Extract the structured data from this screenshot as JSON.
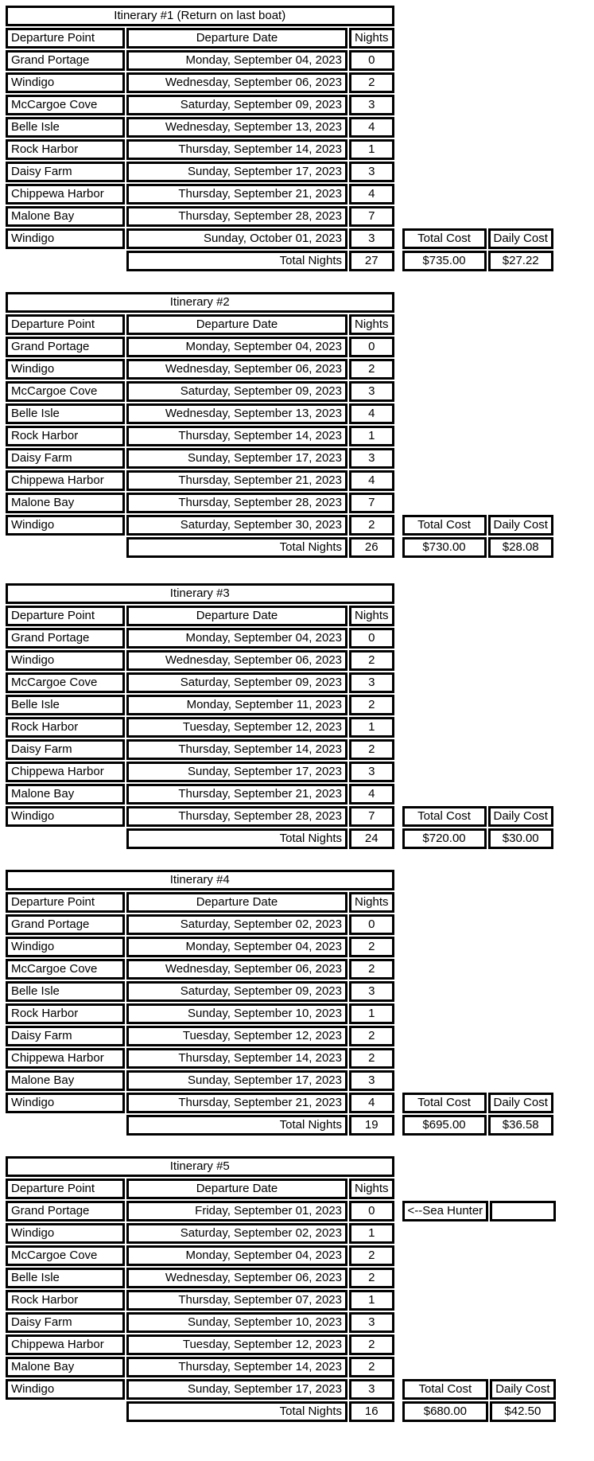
{
  "labels": {
    "departure_point": "Departure Point",
    "departure_date": "Departure Date",
    "nights": "Nights",
    "total_nights": "Total Nights",
    "total_cost": "Total Cost",
    "daily_cost": "Daily Cost"
  },
  "colors": {
    "border": "#000000",
    "cell_background": "#ffffff",
    "text": "#000000"
  },
  "itineraries": [
    {
      "title": "Itinerary #1 (Return on last boat)",
      "rows": [
        {
          "point": "Grand Portage",
          "date": "Monday, September 04, 2023",
          "nights": "0"
        },
        {
          "point": "Windigo",
          "date": "Wednesday, September 06, 2023",
          "nights": "2"
        },
        {
          "point": "McCargoe Cove",
          "date": "Saturday, September 09, 2023",
          "nights": "3"
        },
        {
          "point": "Belle Isle",
          "date": "Wednesday, September 13, 2023",
          "nights": "4"
        },
        {
          "point": "Rock Harbor",
          "date": "Thursday, September 14, 2023",
          "nights": "1"
        },
        {
          "point": "Daisy Farm",
          "date": "Sunday, September 17, 2023",
          "nights": "3"
        },
        {
          "point": "Chippewa Harbor",
          "date": "Thursday, September 21, 2023",
          "nights": "4"
        },
        {
          "point": "Malone Bay",
          "date": "Thursday, September 28, 2023",
          "nights": "7"
        },
        {
          "point": "Windigo",
          "date": "Sunday, October 01, 2023",
          "nights": "3"
        }
      ],
      "total_nights": "27",
      "total_cost": "$735.00",
      "daily_cost": "$27.22"
    },
    {
      "title": "Itinerary #2",
      "rows": [
        {
          "point": "Grand Portage",
          "date": "Monday, September 04, 2023",
          "nights": "0"
        },
        {
          "point": "Windigo",
          "date": "Wednesday, September 06, 2023",
          "nights": "2"
        },
        {
          "point": "McCargoe Cove",
          "date": "Saturday, September 09, 2023",
          "nights": "3"
        },
        {
          "point": "Belle Isle",
          "date": "Wednesday, September 13, 2023",
          "nights": "4"
        },
        {
          "point": "Rock Harbor",
          "date": "Thursday, September 14, 2023",
          "nights": "1"
        },
        {
          "point": "Daisy Farm",
          "date": "Sunday, September 17, 2023",
          "nights": "3"
        },
        {
          "point": "Chippewa Harbor",
          "date": "Thursday, September 21, 2023",
          "nights": "4"
        },
        {
          "point": "Malone Bay",
          "date": "Thursday, September 28, 2023",
          "nights": "7"
        },
        {
          "point": "Windigo",
          "date": "Saturday, September 30, 2023",
          "nights": "2"
        }
      ],
      "total_nights": "26",
      "total_cost": "$730.00",
      "daily_cost": "$28.08"
    },
    {
      "title": "Itinerary #3",
      "rows": [
        {
          "point": "Grand Portage",
          "date": "Monday, September 04, 2023",
          "nights": "0"
        },
        {
          "point": "Windigo",
          "date": "Wednesday, September 06, 2023",
          "nights": "2"
        },
        {
          "point": "McCargoe Cove",
          "date": "Saturday, September 09, 2023",
          "nights": "3"
        },
        {
          "point": "Belle Isle",
          "date": "Monday, September 11, 2023",
          "nights": "2"
        },
        {
          "point": "Rock Harbor",
          "date": "Tuesday, September 12, 2023",
          "nights": "1"
        },
        {
          "point": "Daisy Farm",
          "date": "Thursday, September 14, 2023",
          "nights": "2"
        },
        {
          "point": "Chippewa Harbor",
          "date": "Sunday, September 17, 2023",
          "nights": "3"
        },
        {
          "point": "Malone Bay",
          "date": "Thursday, September 21, 2023",
          "nights": "4"
        },
        {
          "point": "Windigo",
          "date": "Thursday, September 28, 2023",
          "nights": "7"
        }
      ],
      "total_nights": "24",
      "total_cost": "$720.00",
      "daily_cost": "$30.00"
    },
    {
      "title": "Itinerary #4",
      "rows": [
        {
          "point": "Grand Portage",
          "date": "Saturday, September 02, 2023",
          "nights": "0"
        },
        {
          "point": "Windigo",
          "date": "Monday, September 04, 2023",
          "nights": "2"
        },
        {
          "point": "McCargoe Cove",
          "date": "Wednesday, September 06, 2023",
          "nights": "2"
        },
        {
          "point": "Belle Isle",
          "date": "Saturday, September 09, 2023",
          "nights": "3"
        },
        {
          "point": "Rock Harbor",
          "date": "Sunday, September 10, 2023",
          "nights": "1"
        },
        {
          "point": "Daisy Farm",
          "date": "Tuesday, September 12, 2023",
          "nights": "2"
        },
        {
          "point": "Chippewa Harbor",
          "date": "Thursday, September 14, 2023",
          "nights": "2"
        },
        {
          "point": "Malone Bay",
          "date": "Sunday, September 17, 2023",
          "nights": "3"
        },
        {
          "point": "Windigo",
          "date": "Thursday, September 21, 2023",
          "nights": "4"
        }
      ],
      "total_nights": "19",
      "total_cost": "$695.00",
      "daily_cost": "$36.58"
    },
    {
      "title": "Itinerary #5",
      "annotation": "<--Sea Hunter",
      "rows": [
        {
          "point": "Grand Portage",
          "date": "Friday, September 01, 2023",
          "nights": "0"
        },
        {
          "point": "Windigo",
          "date": "Saturday, September 02, 2023",
          "nights": "1"
        },
        {
          "point": "McCargoe Cove",
          "date": "Monday, September 04, 2023",
          "nights": "2"
        },
        {
          "point": "Belle Isle",
          "date": "Wednesday, September 06, 2023",
          "nights": "2"
        },
        {
          "point": "Rock Harbor",
          "date": "Thursday, September 07, 2023",
          "nights": "1"
        },
        {
          "point": "Daisy Farm",
          "date": "Sunday, September 10, 2023",
          "nights": "3"
        },
        {
          "point": "Chippewa Harbor",
          "date": "Tuesday, September 12, 2023",
          "nights": "2"
        },
        {
          "point": "Malone Bay",
          "date": "Thursday, September 14, 2023",
          "nights": "2"
        },
        {
          "point": "Windigo",
          "date": "Sunday, September 17, 2023",
          "nights": "3"
        }
      ],
      "total_nights": "16",
      "total_cost": "$680.00",
      "daily_cost": "$42.50"
    }
  ]
}
